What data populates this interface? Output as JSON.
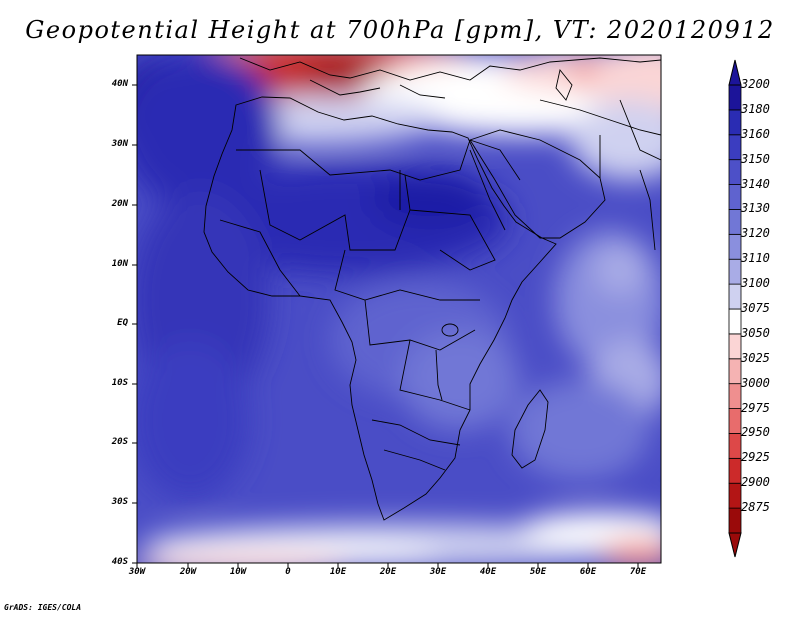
{
  "title": "Geopotential Height at 700hPa [gpm], VT: 2020120912",
  "footer": "GrADS: IGES/COLA",
  "axes": {
    "lat_labels": [
      "40N",
      "30N",
      "20N",
      "10N",
      "EQ",
      "10S",
      "20S",
      "30S",
      "40S"
    ],
    "lon_labels": [
      "30W",
      "20W",
      "10W",
      "0",
      "10E",
      "20E",
      "30E",
      "40E",
      "50E",
      "60E",
      "70E"
    ]
  },
  "colorbar": {
    "levels": [
      "3200",
      "3180",
      "3160",
      "3150",
      "3140",
      "3130",
      "3120",
      "3110",
      "3100",
      "3075",
      "3050",
      "3025",
      "3000",
      "2975",
      "2950",
      "2925",
      "2900",
      "2875"
    ],
    "colors": [
      "#1c1499",
      "#2a2cb3",
      "#3b3dc0",
      "#4d50c8",
      "#5f63cf",
      "#7177d6",
      "#8a8fde",
      "#a9ace6",
      "#cfd1f0",
      "#ffffff",
      "#fbd5d5",
      "#f5b3b3",
      "#ef8f8f",
      "#e86c6c",
      "#dd4848",
      "#cc2a2a",
      "#b31515",
      "#9a0a0a"
    ]
  },
  "colors": {
    "background": "#ffffff",
    "ocean_low": "#3538b8",
    "ocean_mid": "#5a5fcc",
    "subtrop_high": "#1c1499",
    "north_low": "#c42020",
    "coast": "#000000"
  }
}
